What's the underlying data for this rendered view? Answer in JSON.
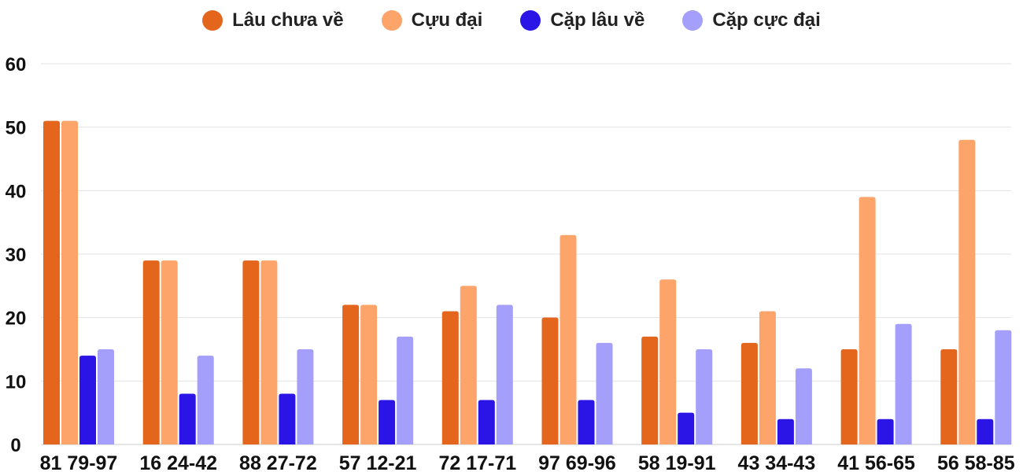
{
  "chart_data": {
    "type": "bar",
    "categories": [
      "81 79-97",
      "16 24-42",
      "88 27-72",
      "57 12-21",
      "72 17-71",
      "97 69-96",
      "58 19-91",
      "43 34-43",
      "41 56-65",
      "56 58-85"
    ],
    "series": [
      {
        "name": "Lâu chưa về",
        "color": "#e3661c",
        "values": [
          51,
          29,
          29,
          22,
          21,
          20,
          17,
          16,
          15,
          15
        ]
      },
      {
        "name": "Cựu đại",
        "color": "#fda46b",
        "values": [
          51,
          29,
          29,
          22,
          25,
          33,
          26,
          21,
          39,
          48
        ]
      },
      {
        "name": "Cặp lâu về",
        "color": "#2a15e6",
        "values": [
          14,
          8,
          8,
          7,
          7,
          7,
          5,
          4,
          4,
          4
        ]
      },
      {
        "name": "Cặp cực đại",
        "color": "#a39ffa",
        "values": [
          15,
          14,
          15,
          17,
          22,
          16,
          15,
          12,
          19,
          18
        ]
      }
    ],
    "ylim": [
      0,
      60
    ],
    "yticks": [
      0,
      10,
      20,
      30,
      40,
      50,
      60
    ],
    "grid": true,
    "legend_position": "top-center",
    "title": "",
    "xlabel": "",
    "ylabel": ""
  }
}
